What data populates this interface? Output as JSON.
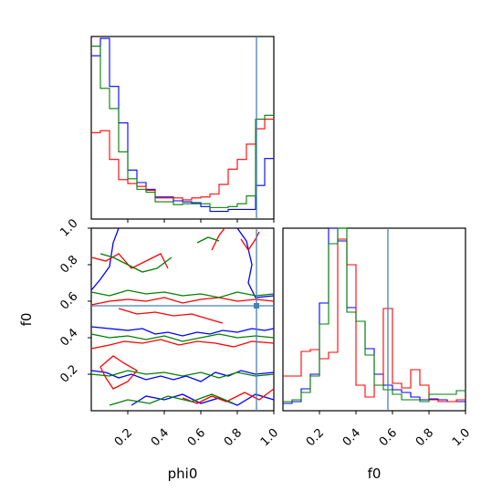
{
  "chart_data": {
    "type": "corner",
    "truth": {
      "phi0": 0.905,
      "f0": 0.575
    },
    "truth_color": "#4682b4",
    "series": [
      {
        "color": "#0000ff"
      },
      {
        "color": "#ff0000"
      },
      {
        "color": "#008000"
      }
    ],
    "labels": {
      "xlabel_left": "phi0",
      "xlabel_right": "f0",
      "ylabel_left": "f0"
    },
    "ticks": {
      "values": [
        0.2,
        0.4,
        0.6,
        0.8,
        1.0
      ],
      "labels": [
        "0.2",
        "0.4",
        "0.6",
        "0.8",
        "1.0"
      ]
    },
    "hist_phi0": {
      "bins": [
        0.0,
        0.05,
        0.1,
        0.15,
        0.2,
        0.25,
        0.3,
        0.35,
        0.4,
        0.45,
        0.5,
        0.55,
        0.6,
        0.65,
        0.7,
        0.75,
        0.8,
        0.85,
        0.9,
        0.95,
        1.0
      ],
      "ylim": [
        0,
        190
      ],
      "blue": [
        170,
        188,
        138,
        100,
        51,
        38,
        31,
        23,
        23,
        19,
        18,
        17,
        13,
        8,
        8,
        10,
        10,
        10,
        35,
        63
      ],
      "red": [
        90,
        92,
        62,
        41,
        37,
        34,
        30,
        22,
        22,
        22,
        20,
        22,
        23,
        26,
        36,
        52,
        62,
        78,
        94,
        104
      ],
      "green": [
        180,
        136,
        115,
        70,
        42,
        31,
        28,
        18,
        18,
        15,
        16,
        16,
        16,
        12,
        12,
        13,
        16,
        24,
        104,
        108
      ]
    },
    "hist_f0": {
      "bins": [
        0.0,
        0.05,
        0.1,
        0.15,
        0.2,
        0.25,
        0.3,
        0.35,
        0.4,
        0.45,
        0.5,
        0.55,
        0.6,
        0.65,
        0.7,
        0.75,
        0.8,
        0.85,
        0.9,
        0.95,
        1.0
      ],
      "ylim": [
        0,
        200
      ],
      "blue": [
        8,
        10,
        24,
        40,
        118,
        205,
        186,
        113,
        98,
        68,
        40,
        28,
        23,
        20,
        15,
        12,
        13,
        12,
        10,
        10
      ],
      "red": [
        38,
        38,
        65,
        67,
        57,
        64,
        188,
        160,
        28,
        15,
        28,
        112,
        30,
        25,
        45,
        28,
        12,
        10,
        10,
        12
      ],
      "green": [
        10,
        12,
        20,
        38,
        95,
        183,
        204,
        108,
        98,
        61,
        28,
        23,
        18,
        12,
        12,
        10,
        18,
        18,
        18,
        22
      ]
    },
    "contours_2d": {
      "blue": [
        [
          [
            0.0,
            0.46
          ],
          [
            0.1,
            0.45
          ],
          [
            0.2,
            0.44
          ],
          [
            0.28,
            0.45
          ],
          [
            0.35,
            0.42
          ],
          [
            0.42,
            0.43
          ],
          [
            0.5,
            0.41
          ],
          [
            0.58,
            0.43
          ],
          [
            0.65,
            0.42
          ],
          [
            0.72,
            0.44
          ],
          [
            0.8,
            0.43
          ],
          [
            0.88,
            0.45
          ],
          [
            0.95,
            0.44
          ],
          [
            1.0,
            0.45
          ]
        ],
        [
          [
            0.0,
            0.22
          ],
          [
            0.08,
            0.21
          ],
          [
            0.15,
            0.18
          ],
          [
            0.22,
            0.2
          ],
          [
            0.3,
            0.17
          ],
          [
            0.38,
            0.19
          ],
          [
            0.45,
            0.17
          ],
          [
            0.52,
            0.19
          ],
          [
            0.6,
            0.16
          ],
          [
            0.68,
            0.21
          ],
          [
            0.75,
            0.19
          ],
          [
            0.82,
            0.22
          ],
          [
            0.9,
            0.2
          ],
          [
            1.0,
            0.21
          ]
        ],
        [
          [
            0.0,
            0.66
          ],
          [
            0.05,
            0.72
          ],
          [
            0.1,
            0.79
          ],
          [
            0.12,
            0.92
          ],
          [
            0.15,
            1.0
          ]
        ],
        [
          [
            0.8,
            1.0
          ],
          [
            0.85,
            0.93
          ],
          [
            0.88,
            0.8
          ],
          [
            0.86,
            0.7
          ],
          [
            0.9,
            0.62
          ],
          [
            1.0,
            0.63
          ]
        ],
        [
          [
            0.22,
            0.03
          ],
          [
            0.3,
            0.08
          ],
          [
            0.4,
            0.06
          ],
          [
            0.5,
            0.09
          ],
          [
            0.6,
            0.04
          ],
          [
            0.7,
            0.07
          ],
          [
            0.8,
            0.03
          ],
          [
            0.9,
            0.09
          ],
          [
            1.0,
            0.06
          ]
        ]
      ],
      "red": [
        [
          [
            0.0,
            0.58
          ],
          [
            0.1,
            0.6
          ],
          [
            0.2,
            0.61
          ],
          [
            0.3,
            0.6
          ],
          [
            0.4,
            0.62
          ],
          [
            0.5,
            0.59
          ],
          [
            0.6,
            0.61
          ],
          [
            0.7,
            0.62
          ],
          [
            0.8,
            0.6
          ],
          [
            0.9,
            0.61
          ],
          [
            1.0,
            0.6
          ]
        ],
        [
          [
            0.15,
            0.56
          ],
          [
            0.25,
            0.53
          ],
          [
            0.35,
            0.54
          ],
          [
            0.45,
            0.52
          ],
          [
            0.55,
            0.53
          ],
          [
            0.65,
            0.5
          ],
          [
            0.72,
            0.48
          ]
        ],
        [
          [
            0.0,
            0.34
          ],
          [
            0.1,
            0.36
          ],
          [
            0.18,
            0.38
          ],
          [
            0.28,
            0.37
          ],
          [
            0.38,
            0.39
          ],
          [
            0.48,
            0.36
          ],
          [
            0.58,
            0.38
          ],
          [
            0.68,
            0.37
          ],
          [
            0.78,
            0.35
          ],
          [
            0.88,
            0.38
          ],
          [
            1.0,
            0.37
          ]
        ],
        [
          [
            0.05,
            0.24
          ],
          [
            0.12,
            0.3
          ],
          [
            0.18,
            0.26
          ],
          [
            0.25,
            0.22
          ],
          [
            0.2,
            0.16
          ],
          [
            0.12,
            0.12
          ],
          [
            0.08,
            0.18
          ],
          [
            0.05,
            0.24
          ]
        ],
        [
          [
            0.0,
            0.84
          ],
          [
            0.08,
            0.82
          ],
          [
            0.15,
            0.86
          ],
          [
            0.22,
            0.78
          ],
          [
            0.3,
            0.82
          ],
          [
            0.38,
            0.86
          ],
          [
            0.42,
            0.78
          ]
        ],
        [
          [
            0.66,
            0.88
          ],
          [
            0.7,
            0.96
          ],
          [
            0.73,
            1.0
          ]
        ],
        [
          [
            0.82,
            0.94
          ],
          [
            0.86,
            0.88
          ],
          [
            0.9,
            0.94
          ],
          [
            0.92,
            0.98
          ]
        ],
        [
          [
            0.5,
            0.07
          ],
          [
            0.58,
            0.04
          ],
          [
            0.66,
            0.08
          ],
          [
            0.74,
            0.05
          ],
          [
            0.84,
            0.1
          ],
          [
            0.92,
            0.06
          ],
          [
            1.0,
            0.12
          ]
        ]
      ],
      "green": [
        [
          [
            0.0,
            0.65
          ],
          [
            0.1,
            0.63
          ],
          [
            0.2,
            0.66
          ],
          [
            0.3,
            0.64
          ],
          [
            0.4,
            0.65
          ],
          [
            0.5,
            0.63
          ],
          [
            0.6,
            0.64
          ],
          [
            0.7,
            0.62
          ],
          [
            0.8,
            0.65
          ],
          [
            0.9,
            0.63
          ],
          [
            1.0,
            0.64
          ]
        ],
        [
          [
            0.0,
            0.42
          ],
          [
            0.1,
            0.4
          ],
          [
            0.2,
            0.41
          ],
          [
            0.3,
            0.39
          ],
          [
            0.4,
            0.41
          ],
          [
            0.5,
            0.38
          ],
          [
            0.6,
            0.4
          ],
          [
            0.7,
            0.42
          ],
          [
            0.8,
            0.4
          ],
          [
            0.9,
            0.41
          ],
          [
            1.0,
            0.4
          ]
        ],
        [
          [
            0.0,
            0.2
          ],
          [
            0.1,
            0.19
          ],
          [
            0.2,
            0.22
          ],
          [
            0.3,
            0.2
          ],
          [
            0.4,
            0.21
          ],
          [
            0.5,
            0.19
          ],
          [
            0.6,
            0.21
          ],
          [
            0.7,
            0.18
          ],
          [
            0.8,
            0.21
          ],
          [
            0.9,
            0.19
          ],
          [
            1.0,
            0.2
          ]
        ],
        [
          [
            0.05,
            0.86
          ],
          [
            0.12,
            0.84
          ],
          [
            0.2,
            0.8
          ],
          [
            0.28,
            0.76
          ],
          [
            0.36,
            0.78
          ],
          [
            0.44,
            0.84
          ]
        ],
        [
          [
            0.58,
            0.92
          ],
          [
            0.64,
            0.95
          ],
          [
            0.7,
            0.93
          ]
        ],
        [
          [
            0.1,
            0.03
          ],
          [
            0.2,
            0.06
          ],
          [
            0.32,
            0.04
          ],
          [
            0.42,
            0.08
          ],
          [
            0.55,
            0.05
          ],
          [
            0.66,
            0.09
          ],
          [
            0.78,
            0.04
          ]
        ]
      ]
    }
  }
}
